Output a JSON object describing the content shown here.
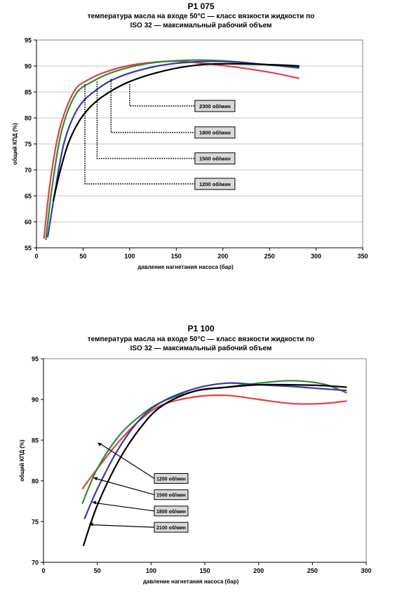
{
  "charts": [
    {
      "title": "P1 075",
      "subtitle": "температура масла на входе 50°C — класс вязкости жидкости по\nISO 32 — максимальный рабочий объем"
    },
    {
      "title": "P1 100",
      "subtitle": "температура масла на входе 50°C — класс вязкости жидкости по\nISO 32 — максимальный рабочий объем"
    }
  ],
  "chart_data": [
    {
      "type": "line",
      "title": "P1 075",
      "subtitle": "температура масла на входе 50°C — класс вязкости жидкости по ISO 32 — максимальный рабочий объем",
      "xlabel": "давление нагнетания насоса (бар)",
      "ylabel": "общий КПД (%)",
      "xlim": [
        0,
        350
      ],
      "ylim": [
        55,
        95
      ],
      "xticks": [
        0,
        50,
        100,
        150,
        200,
        250,
        300,
        350
      ],
      "yticks": [
        55,
        60,
        65,
        70,
        75,
        80,
        85,
        90,
        95
      ],
      "grid": true,
      "series": [
        {
          "name": "2300 об/мин",
          "color": "#e04040",
          "x": [
            8,
            15,
            25,
            40,
            55,
            80,
            110,
            150,
            200,
            250,
            282
          ],
          "y": [
            56.8,
            68,
            78,
            85,
            87.3,
            89.2,
            90.4,
            90.9,
            90.1,
            88.8,
            87.6
          ]
        },
        {
          "name": "1800 об/мин",
          "color": "#2e8b3a",
          "x": [
            10,
            17,
            27,
            42,
            60,
            85,
            120,
            160,
            200,
            250,
            282
          ],
          "y": [
            56.5,
            67,
            77.5,
            84.5,
            87,
            89,
            90.5,
            91.1,
            91,
            90.2,
            89.6
          ]
        },
        {
          "name": "1500 об/мин",
          "color": "#3838a8",
          "x": [
            12,
            20,
            30,
            45,
            65,
            90,
            130,
            170,
            210,
            250,
            282
          ],
          "y": [
            57,
            66,
            75.5,
            82,
            85.5,
            88,
            90,
            90.8,
            90.8,
            90.2,
            89.8
          ]
        },
        {
          "name": "1200 об/мин",
          "color": "#000000",
          "x": [
            18,
            25,
            35,
            50,
            70,
            100,
            140,
            180,
            220,
            260,
            282
          ],
          "y": [
            64,
            69.5,
            75.5,
            80.5,
            84,
            87,
            89.2,
            90.3,
            90.4,
            90.2,
            90
          ]
        }
      ],
      "annotations": [
        {
          "text": "2300 об/мин",
          "x": 100,
          "y": 86.5,
          "label_at": [
            170,
            82.3
          ]
        },
        {
          "text": "1800 об/мин",
          "x": 80,
          "y": 87.5,
          "label_at": [
            170,
            77.2
          ]
        },
        {
          "text": "1500 об/мин",
          "x": 65,
          "y": 87,
          "label_at": [
            170,
            72.2
          ]
        },
        {
          "text": "1200 об/мин",
          "x": 52,
          "y": 86.5,
          "label_at": [
            170,
            67.3
          ]
        }
      ]
    },
    {
      "type": "line",
      "title": "P1 100",
      "subtitle": "температура масла на входе 50°C — класс вязкости жидкости по ISO 32 — максимальный рабочий объем",
      "xlabel": "давление нагнетания насоса (бар)",
      "ylabel": "общий КПД (%)",
      "xlim": [
        0,
        300
      ],
      "ylim": [
        70,
        95
      ],
      "xticks": [
        0,
        50,
        100,
        150,
        200,
        250,
        300
      ],
      "yticks": [
        70,
        75,
        80,
        85,
        90,
        95
      ],
      "grid": false,
      "series": [
        {
          "name": "1200 об/мин",
          "color": "#e04040",
          "x": [
            36,
            50,
            70,
            90,
            110,
            140,
            170,
            200,
            230,
            260,
            282
          ],
          "y": [
            79,
            81.5,
            84.8,
            87.5,
            89.3,
            90.3,
            90.5,
            90,
            89.5,
            89.5,
            89.8
          ]
        },
        {
          "name": "1500 об/мин",
          "color": "#2e8b3a",
          "x": [
            36,
            50,
            70,
            90,
            110,
            140,
            170,
            200,
            230,
            260,
            282
          ],
          "y": [
            77.2,
            81.5,
            85.5,
            88,
            89.7,
            91,
            91.5,
            92,
            92.3,
            91.9,
            90.8
          ]
        },
        {
          "name": "1800 об/мин",
          "color": "#3838a8",
          "x": [
            38,
            50,
            70,
            90,
            110,
            140,
            170,
            200,
            230,
            260,
            282
          ],
          "y": [
            75.3,
            79,
            84,
            87.6,
            89.7,
            91.3,
            92,
            91.8,
            91.6,
            91.3,
            91.1
          ]
        },
        {
          "name": "2100 об/мин",
          "color": "#000000",
          "x": [
            37,
            50,
            70,
            90,
            110,
            140,
            170,
            200,
            230,
            260,
            282
          ],
          "y": [
            72,
            77,
            82.5,
            86.5,
            89.2,
            91,
            91.5,
            91.8,
            91.8,
            91.7,
            91.5
          ]
        }
      ],
      "annotations": [
        {
          "text": "1200 об/мин",
          "x": 50,
          "y": 84.7,
          "label_at": [
            103,
            80.3
          ]
        },
        {
          "text": "1500 об/мин",
          "x": 46,
          "y": 80.4,
          "label_at": [
            103,
            78.3
          ]
        },
        {
          "text": "1800 об/мин",
          "x": 45,
          "y": 77.4,
          "label_at": [
            103,
            76.3
          ]
        },
        {
          "text": "2100 об/мин",
          "x": 42,
          "y": 74.7,
          "label_at": [
            103,
            74.3
          ]
        }
      ]
    }
  ]
}
